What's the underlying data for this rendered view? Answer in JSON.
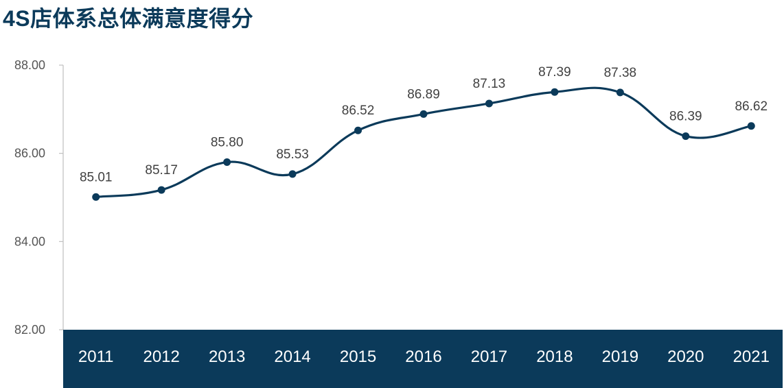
{
  "chart_data": {
    "type": "line",
    "title": "4S店体系总体满意度得分",
    "categories": [
      "2011",
      "2012",
      "2013",
      "2014",
      "2015",
      "2016",
      "2017",
      "2018",
      "2019",
      "2020",
      "2021"
    ],
    "series": [
      {
        "values": [
          85.01,
          85.17,
          85.8,
          85.53,
          86.52,
          86.89,
          87.13,
          87.39,
          87.38,
          86.39,
          86.62
        ],
        "labels": [
          "85.01",
          "85.17",
          "85.80",
          "85.53",
          "86.52",
          "86.89",
          "87.13",
          "87.39",
          "87.38",
          "86.39",
          "86.62"
        ]
      }
    ],
    "yticks": [
      "82.00",
      "84.00",
      "86.00",
      "88.00"
    ],
    "ylim": [
      82,
      88
    ],
    "line_color": "#0b3a5a",
    "axis_band_color": "#0b3a5a",
    "smooth": true,
    "grid": false,
    "legend": false
  }
}
